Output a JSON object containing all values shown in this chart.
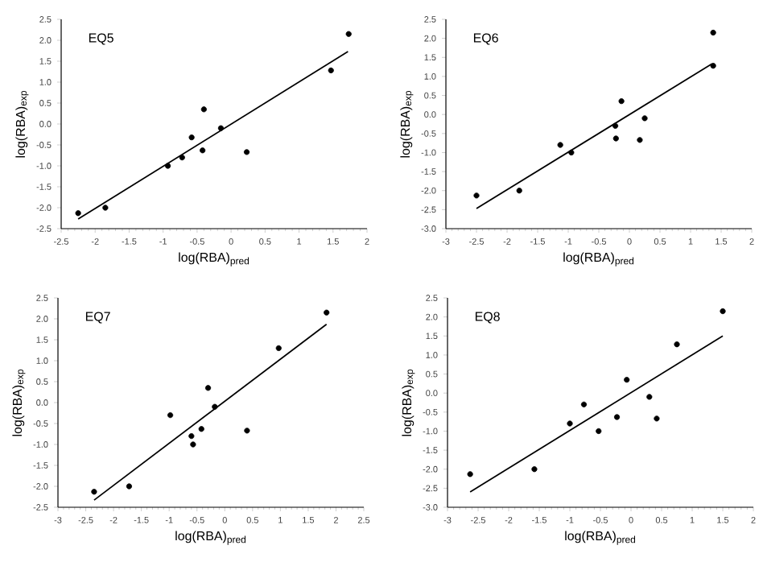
{
  "chart_data": [
    {
      "type": "scatter",
      "title": "EQ5",
      "xlabel": "log(RBA)$_{pred}$",
      "ylabel": "log(RBA)$_{exp}$",
      "marker": "circle",
      "xlim": [
        -2.5,
        2
      ],
      "ylim": [
        -2.5,
        2.5
      ],
      "xticks": [
        -2.5,
        -2,
        -1.5,
        -1,
        -0.5,
        0,
        0.5,
        1,
        1.5,
        2
      ],
      "yticks": [
        {
          "value": -2.5,
          "label": "-2.5"
        },
        {
          "value": -2,
          "label": "-2.0"
        },
        {
          "value": -1.5,
          "label": "-1.5"
        },
        {
          "value": -1,
          "label": "-1.0"
        },
        {
          "value": -0.5,
          "label": "-0.5"
        },
        {
          "value": 0,
          "label": "0.0"
        },
        {
          "value": 0.5,
          "label": "0.5"
        },
        {
          "value": 1,
          "label": "1.0"
        },
        {
          "value": 1.5,
          "label": "1.5"
        },
        {
          "value": 2,
          "label": "2.0"
        },
        {
          "value": 2.5,
          "label": "2.5"
        }
      ],
      "series": [
        {
          "type": "scatter",
          "color": "#000000",
          "x": [
            -2.25,
            -1.85,
            -0.93,
            -0.72,
            -0.58,
            -0.42,
            -0.4,
            -0.15,
            0.23,
            1.47,
            1.73
          ],
          "values": [
            -2.13,
            -2.0,
            -1.0,
            -0.8,
            -0.32,
            -0.63,
            0.35,
            -0.1,
            -0.67,
            1.28,
            2.15
          ]
        },
        {
          "type": "line",
          "marker": "none",
          "color": "#000000",
          "x": [
            -2.25,
            1.72
          ],
          "values": [
            -2.27,
            1.73
          ]
        }
      ]
    },
    {
      "type": "scatter",
      "title": "EQ6",
      "xlabel": "log(RBA)$_{pred}$",
      "ylabel": "log(RBA)$_{exp}$",
      "marker": "circle",
      "xlim": [
        -3,
        2
      ],
      "ylim": [
        -3,
        2.5
      ],
      "xticks": [
        -3,
        -2.5,
        -2,
        -1.5,
        -1,
        -0.5,
        0,
        0.5,
        1,
        1.5,
        2
      ],
      "yticks": [
        {
          "value": -3,
          "label": "-3.0"
        },
        {
          "value": -2.5,
          "label": "-2.5"
        },
        {
          "value": -2,
          "label": "-2.0"
        },
        {
          "value": -1.5,
          "label": "-1.5"
        },
        {
          "value": -1,
          "label": "-1.0"
        },
        {
          "value": -0.5,
          "label": "-0.5"
        },
        {
          "value": 0,
          "label": "0.0"
        },
        {
          "value": 0.5,
          "label": "0.5"
        },
        {
          "value": 1,
          "label": "1.0"
        },
        {
          "value": 1.5,
          "label": "1.5"
        },
        {
          "value": 2,
          "label": "2.0"
        },
        {
          "value": 2.5,
          "label": "2.5"
        }
      ],
      "series": [
        {
          "type": "scatter",
          "color": "#000000",
          "x": [
            -2.5,
            -1.8,
            -1.13,
            -0.95,
            -0.23,
            -0.22,
            -0.13,
            0.17,
            0.25,
            1.37,
            1.37
          ],
          "values": [
            -2.13,
            -2.0,
            -0.8,
            -1.0,
            -0.3,
            -0.63,
            0.35,
            -0.67,
            -0.1,
            1.28,
            2.15
          ]
        },
        {
          "type": "line",
          "marker": "none",
          "color": "#000000",
          "x": [
            -2.5,
            1.35
          ],
          "values": [
            -2.47,
            1.33
          ]
        }
      ]
    },
    {
      "type": "scatter",
      "title": "EQ7",
      "xlabel": "log(RBA)$_{pred}$",
      "ylabel": "log(RBA)$_{exp}$",
      "marker": "circle",
      "xlim": [
        -3,
        2.5
      ],
      "ylim": [
        -2.5,
        2.5
      ],
      "xticks": [
        -3,
        -2.5,
        -2,
        -1.5,
        -1,
        -0.5,
        0,
        0.5,
        1,
        1.5,
        2,
        2.5
      ],
      "yticks": [
        {
          "value": -2.5,
          "label": "-2.5"
        },
        {
          "value": -2,
          "label": "-2.0"
        },
        {
          "value": -1.5,
          "label": "-1.5"
        },
        {
          "value": -1,
          "label": "-1.0"
        },
        {
          "value": -0.5,
          "label": "-0.5"
        },
        {
          "value": 0,
          "label": "0.0"
        },
        {
          "value": 0.5,
          "label": "0.5"
        },
        {
          "value": 1,
          "label": "1.0"
        },
        {
          "value": 1.5,
          "label": "1.5"
        },
        {
          "value": 2,
          "label": "2.0"
        },
        {
          "value": 2.5,
          "label": "2.5"
        }
      ],
      "series": [
        {
          "type": "scatter",
          "color": "#000000",
          "x": [
            -2.35,
            -1.72,
            -0.98,
            -0.6,
            -0.57,
            -0.42,
            -0.3,
            -0.18,
            0.4,
            0.97,
            1.83
          ],
          "values": [
            -2.13,
            -2.0,
            -0.3,
            -0.8,
            -1.0,
            -0.63,
            0.35,
            -0.1,
            -0.67,
            1.3,
            2.15
          ]
        },
        {
          "type": "line",
          "marker": "none",
          "color": "#000000",
          "x": [
            -2.35,
            1.83
          ],
          "values": [
            -2.33,
            1.87
          ]
        }
      ]
    },
    {
      "type": "scatter",
      "title": "EQ8",
      "xlabel": "log(RBA)$_{pred}$",
      "ylabel": "log(RBA)$_{exp}$",
      "marker": "circle",
      "xlim": [
        -3,
        2
      ],
      "ylim": [
        -3,
        2.5
      ],
      "xticks": [
        -3,
        -2.5,
        -2,
        -1.5,
        -1,
        -0.5,
        0,
        0.5,
        1,
        1.5,
        2
      ],
      "yticks": [
        {
          "value": -3,
          "label": "-3.0"
        },
        {
          "value": -2.5,
          "label": "-2.5"
        },
        {
          "value": -2,
          "label": "-2.0"
        },
        {
          "value": -1.5,
          "label": "-1.5"
        },
        {
          "value": -1,
          "label": "-1.0"
        },
        {
          "value": -0.5,
          "label": "-0.5"
        },
        {
          "value": 0,
          "label": "0.0"
        },
        {
          "value": 0.5,
          "label": "0.5"
        },
        {
          "value": 1,
          "label": "1.0"
        },
        {
          "value": 1.5,
          "label": "1.5"
        },
        {
          "value": 2,
          "label": "2.0"
        },
        {
          "value": 2.5,
          "label": "2.5"
        }
      ],
      "series": [
        {
          "type": "scatter",
          "color": "#000000",
          "x": [
            -2.63,
            -1.58,
            -1.0,
            -0.77,
            -0.53,
            -0.23,
            -0.07,
            0.3,
            0.42,
            0.75,
            1.5
          ],
          "values": [
            -2.13,
            -2.0,
            -0.8,
            -0.3,
            -1.0,
            -0.63,
            0.35,
            -0.1,
            -0.67,
            1.28,
            2.15
          ]
        },
        {
          "type": "line",
          "marker": "none",
          "color": "#000000",
          "x": [
            -2.63,
            1.5
          ],
          "values": [
            -2.6,
            1.5
          ]
        }
      ]
    }
  ]
}
